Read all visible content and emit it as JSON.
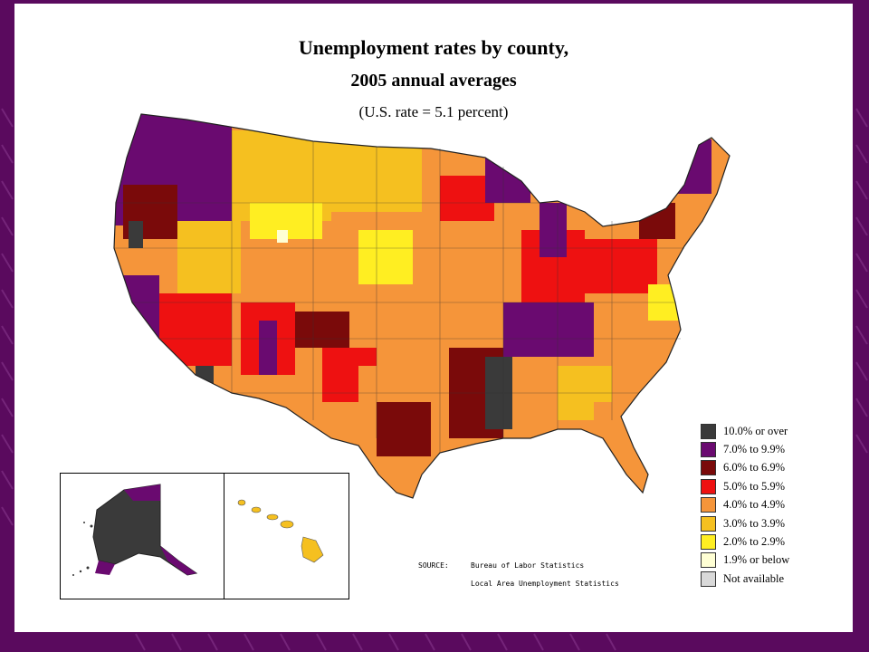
{
  "slide": {
    "title_line1": "Unemployment rates by county,",
    "title_line2": "2005 annual averages",
    "subtitle": "(U.S. rate = 5.1 percent)"
  },
  "legend": {
    "items": [
      {
        "label": "10.0% or over",
        "color": "#3a3a3a"
      },
      {
        "label": "7.0% to 9.9%",
        "color": "#6a0a70"
      },
      {
        "label": "6.0% to 6.9%",
        "color": "#7a0a0a"
      },
      {
        "label": "5.0% to 5.9%",
        "color": "#ee1111"
      },
      {
        "label": "4.0% to 4.9%",
        "color": "#f5953a"
      },
      {
        "label": "3.0% to 3.9%",
        "color": "#f5c020"
      },
      {
        "label": "2.0% to 2.9%",
        "color": "#ffee22"
      },
      {
        "label": "1.9% or below",
        "color": "#ffffd4"
      },
      {
        "label": "Not available",
        "color": "#d9d9d9"
      }
    ]
  },
  "source": {
    "label": "SOURCE:",
    "line1": "Bureau of Labor Statistics",
    "line2": "Local Area Unemployment Statistics"
  },
  "colors": {
    "frame": "#5a0a5e",
    "panel": "#ffffff"
  }
}
